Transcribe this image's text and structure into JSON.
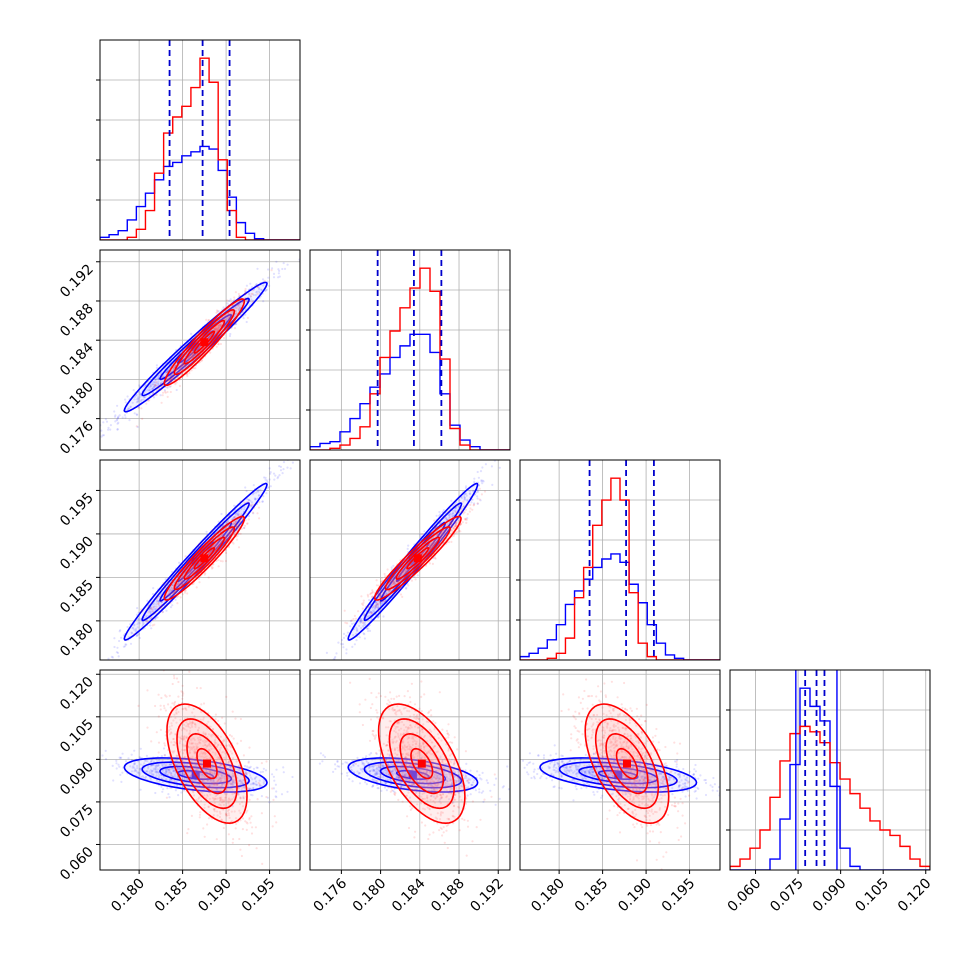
{
  "chart_data": {
    "type": "corner",
    "grid": true,
    "colors": {
      "series_a": "#0000ff",
      "series_b": "#ff0000",
      "quantile_line": "#0000cc",
      "grid": "#b0b0b0"
    },
    "ticks": {
      "p0": [
        "0.180",
        "0.185",
        "0.190",
        "0.195"
      ],
      "p1": [
        "0.176",
        "0.180",
        "0.184",
        "0.188",
        "0.192"
      ],
      "p2": [
        "0.180",
        "0.185",
        "0.190",
        "0.195"
      ],
      "p3": [
        "0.060",
        "0.075",
        "0.090",
        "0.105",
        "0.120"
      ]
    },
    "ranges": {
      "p0": [
        0.1755,
        0.1985
      ],
      "p1": [
        0.1728,
        0.1932
      ],
      "p2": [
        0.1755,
        0.1985
      ],
      "p3": [
        0.051,
        0.1215
      ]
    },
    "quantiles": {
      "p0": [
        0.1835,
        0.1873,
        0.1904
      ],
      "p1": [
        0.1797,
        0.1834,
        0.1862
      ],
      "p2": [
        0.1835,
        0.1877,
        0.1909
      ],
      "p3": [
        0.0775,
        0.0815,
        0.0843
      ]
    },
    "histograms": {
      "p0": {
        "blue": [
          0.02,
          0.04,
          0.07,
          0.15,
          0.25,
          0.35,
          0.45,
          0.55,
          0.58,
          0.63,
          0.66,
          0.7,
          0.68,
          0.52,
          0.32,
          0.13,
          0.05,
          0.01,
          0,
          0,
          0,
          0
        ],
        "red": [
          0,
          0,
          0,
          0.02,
          0.08,
          0.22,
          0.5,
          0.8,
          0.92,
          1.0,
          1.14,
          1.36,
          1.18,
          0.6,
          0.22,
          0.02,
          0,
          0,
          0,
          0,
          0,
          0
        ]
      },
      "p1": {
        "blue": [
          0.02,
          0.04,
          0.05,
          0.11,
          0.19,
          0.28,
          0.38,
          0.46,
          0.56,
          0.63,
          0.7,
          0.7,
          0.59,
          0.34,
          0.15,
          0.06,
          0.02,
          0,
          0,
          0
        ],
        "red": [
          0,
          0,
          0.01,
          0.03,
          0.07,
          0.14,
          0.34,
          0.56,
          0.72,
          0.86,
          0.98,
          1.1,
          0.96,
          0.55,
          0.13,
          0.03,
          0,
          0,
          0,
          0
        ]
      },
      "p2": {
        "blue": [
          0.02,
          0.04,
          0.07,
          0.12,
          0.21,
          0.33,
          0.41,
          0.48,
          0.55,
          0.6,
          0.63,
          0.58,
          0.45,
          0.34,
          0.21,
          0.1,
          0.03,
          0.01,
          0,
          0,
          0,
          0
        ],
        "red": [
          0,
          0,
          0,
          0.01,
          0.04,
          0.13,
          0.37,
          0.55,
          0.8,
          0.95,
          1.08,
          0.95,
          0.4,
          0.1,
          0.02,
          0,
          0,
          0,
          0,
          0,
          0,
          0
        ]
      },
      "p3": {
        "blue": [
          0,
          0,
          0,
          0,
          0.06,
          0.28,
          0.58,
          1.0,
          0.9,
          0.82,
          0.46,
          0.12,
          0.02,
          0,
          0,
          0,
          0,
          0,
          0,
          0
        ],
        "red": [
          0.02,
          0.06,
          0.12,
          0.22,
          0.4,
          0.6,
          0.75,
          0.79,
          0.76,
          0.7,
          0.59,
          0.5,
          0.42,
          0.34,
          0.27,
          0.22,
          0.19,
          0.13,
          0.06,
          0.02
        ]
      }
    },
    "joint": [
      {
        "pair": [
          "p0",
          "p1"
        ],
        "blue": {
          "mean": [
            0.1865,
            0.1833
          ],
          "sd": [
            0.0041,
            0.0033
          ],
          "rho": 0.98
        },
        "red": {
          "mean": [
            0.1875,
            0.1838
          ],
          "sd": [
            0.0023,
            0.0022
          ],
          "rho": 0.95
        }
      },
      {
        "pair": [
          "p0",
          "p2"
        ],
        "blue": {
          "mean": [
            0.1865,
            0.1868
          ],
          "sd": [
            0.0041,
            0.0045
          ],
          "rho": 0.985
        },
        "red": {
          "mean": [
            0.1875,
            0.1872
          ],
          "sd": [
            0.0023,
            0.0024
          ],
          "rho": 0.95
        }
      },
      {
        "pair": [
          "p1",
          "p2"
        ],
        "blue": {
          "mean": [
            0.1833,
            0.1868
          ],
          "sd": [
            0.0033,
            0.0045
          ],
          "rho": 0.985
        },
        "red": {
          "mean": [
            0.1838,
            0.1872
          ],
          "sd": [
            0.0022,
            0.0024
          ],
          "rho": 0.95
        }
      },
      {
        "pair": [
          "p0",
          "p3"
        ],
        "blue": {
          "mean": [
            0.1865,
            0.0845
          ],
          "sd": [
            0.0041,
            0.003
          ],
          "rho": -0.45
        },
        "red": {
          "mean": [
            0.1878,
            0.0885
          ],
          "sd": [
            0.0023,
            0.0105
          ],
          "rho": -0.55
        }
      },
      {
        "pair": [
          "p1",
          "p3"
        ],
        "blue": {
          "mean": [
            0.1833,
            0.0845
          ],
          "sd": [
            0.0033,
            0.003
          ],
          "rho": -0.45
        },
        "red": {
          "mean": [
            0.1842,
            0.0885
          ],
          "sd": [
            0.0022,
            0.0105
          ],
          "rho": -0.55
        }
      },
      {
        "pair": [
          "p2",
          "p3"
        ],
        "blue": {
          "mean": [
            0.1868,
            0.0845
          ],
          "sd": [
            0.0045,
            0.003
          ],
          "rho": -0.45
        },
        "red": {
          "mean": [
            0.1878,
            0.0885
          ],
          "sd": [
            0.0024,
            0.0105
          ],
          "rho": -0.55
        }
      }
    ]
  }
}
